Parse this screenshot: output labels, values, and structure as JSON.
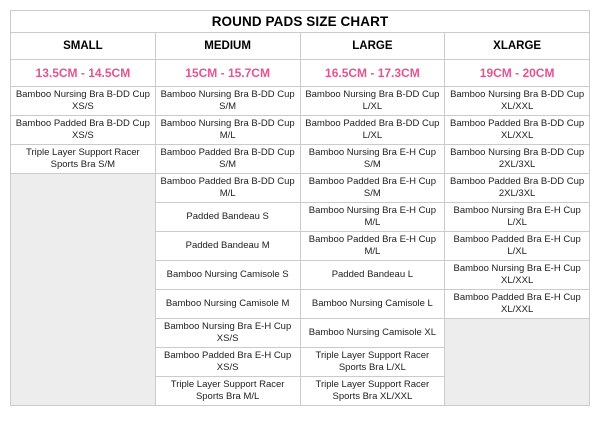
{
  "colors": {
    "pink_accent": "#e4558f",
    "grid_border": "#cbcbcb",
    "empty_cell_fill": "#ededed",
    "text": "#1d1d1d"
  },
  "chart_data": {
    "type": "table",
    "title": "ROUND PADS SIZE CHART",
    "columns": [
      "SMALL",
      "MEDIUM",
      "LARGE",
      "XLARGE"
    ],
    "size_ranges": [
      "13.5CM - 14.5CM",
      "15CM - 15.7CM",
      "16.5CM - 17.3CM",
      "19CM - 20CM"
    ],
    "rows": [
      [
        "Bamboo Nursing Bra B-DD Cup XS/S",
        "Bamboo Nursing Bra B-DD Cup S/M",
        "Bamboo Nursing Bra B-DD Cup L/XL",
        "Bamboo Nursing Bra B-DD Cup XL/XXL"
      ],
      [
        "Bamboo Padded Bra B-DD Cup XS/S",
        "Bamboo Nursing Bra B-DD Cup M/L",
        "Bamboo Padded Bra B-DD Cup L/XL",
        "Bamboo Padded Bra B-DD Cup XL/XXL"
      ],
      [
        "Triple Layer Support Racer Sports Bra S/M",
        "Bamboo Padded Bra B-DD Cup S/M",
        "Bamboo Nursing Bra E-H Cup S/M",
        "Bamboo Nursing Bra B-DD Cup 2XL/3XL"
      ],
      [
        "",
        "Bamboo Padded Bra B-DD Cup M/L",
        "Bamboo Padded Bra E-H Cup S/M",
        "Bamboo Padded Bra B-DD Cup 2XL/3XL"
      ],
      [
        "",
        "Padded Bandeau S",
        "Bamboo Nursing Bra E-H Cup M/L",
        "Bamboo Nursing Bra E-H Cup L/XL"
      ],
      [
        "",
        "Padded Bandeau M",
        "Bamboo Padded Bra E-H Cup M/L",
        "Bamboo Padded Bra E-H Cup L/XL"
      ],
      [
        "",
        "Bamboo Nursing Camisole S",
        "Padded Bandeau L",
        "Bamboo Nursing Bra E-H Cup XL/XXL"
      ],
      [
        "",
        "Bamboo Nursing Camisole M",
        "Bamboo Nursing Camisole L",
        "Bamboo Padded Bra E-H Cup XL/XXL"
      ],
      [
        "",
        "Bamboo Nursing Bra E-H Cup XS/S",
        "Bamboo Nursing Camisole XL",
        ""
      ],
      [
        "",
        "Bamboo Padded Bra E-H Cup XS/S",
        "Triple Layer Support Racer Sports Bra L/XL",
        ""
      ],
      [
        "",
        "Triple Layer Support Racer Sports Bra M/L",
        "Triple Layer Support Racer Sports Bra XL/XXL",
        ""
      ]
    ]
  }
}
